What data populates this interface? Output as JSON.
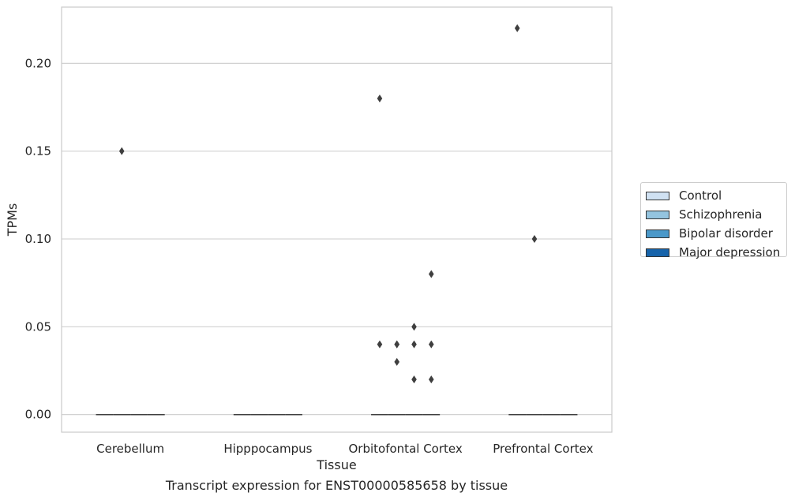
{
  "chart_data": {
    "type": "box",
    "xlabel": "Tissue",
    "ylabel": "TPMs",
    "caption": "Transcript expression for ENST00000585658 by tissue",
    "categories": [
      "Cerebellum",
      "Hipppocampus",
      "Orbitofontal Cortex",
      "Prefrontal Cortex"
    ],
    "ylim": [
      -0.01,
      0.232
    ],
    "yticks": [
      "0.00",
      "0.05",
      "0.10",
      "0.15",
      "0.20"
    ],
    "grid": true,
    "legend_placement": "right",
    "series": [
      {
        "name": "Control",
        "color": "#d0e1f2",
        "medians": [
          0,
          0,
          0,
          0
        ],
        "outliers": [
          [],
          [],
          [
            0.18,
            0.04
          ],
          [
            0.22
          ]
        ]
      },
      {
        "name": "Schizophrenia",
        "color": "#94c4df",
        "medians": [
          0,
          0,
          0,
          0
        ],
        "outliers": [
          [
            0.15
          ],
          [],
          [
            0.04,
            0.03,
            0.04
          ],
          [
            0.1
          ]
        ]
      },
      {
        "name": "Bipolar disorder",
        "color": "#4a98c9",
        "medians": [
          0,
          0,
          0,
          0
        ],
        "outliers": [
          [],
          [],
          [
            0.05,
            0.04,
            0.02
          ],
          []
        ]
      },
      {
        "name": "Major depression",
        "color": "#1764ab",
        "medians": [
          0,
          0,
          0,
          0
        ],
        "outliers": [
          [],
          [],
          [
            0.08,
            0.04,
            0.02
          ],
          []
        ]
      }
    ]
  }
}
